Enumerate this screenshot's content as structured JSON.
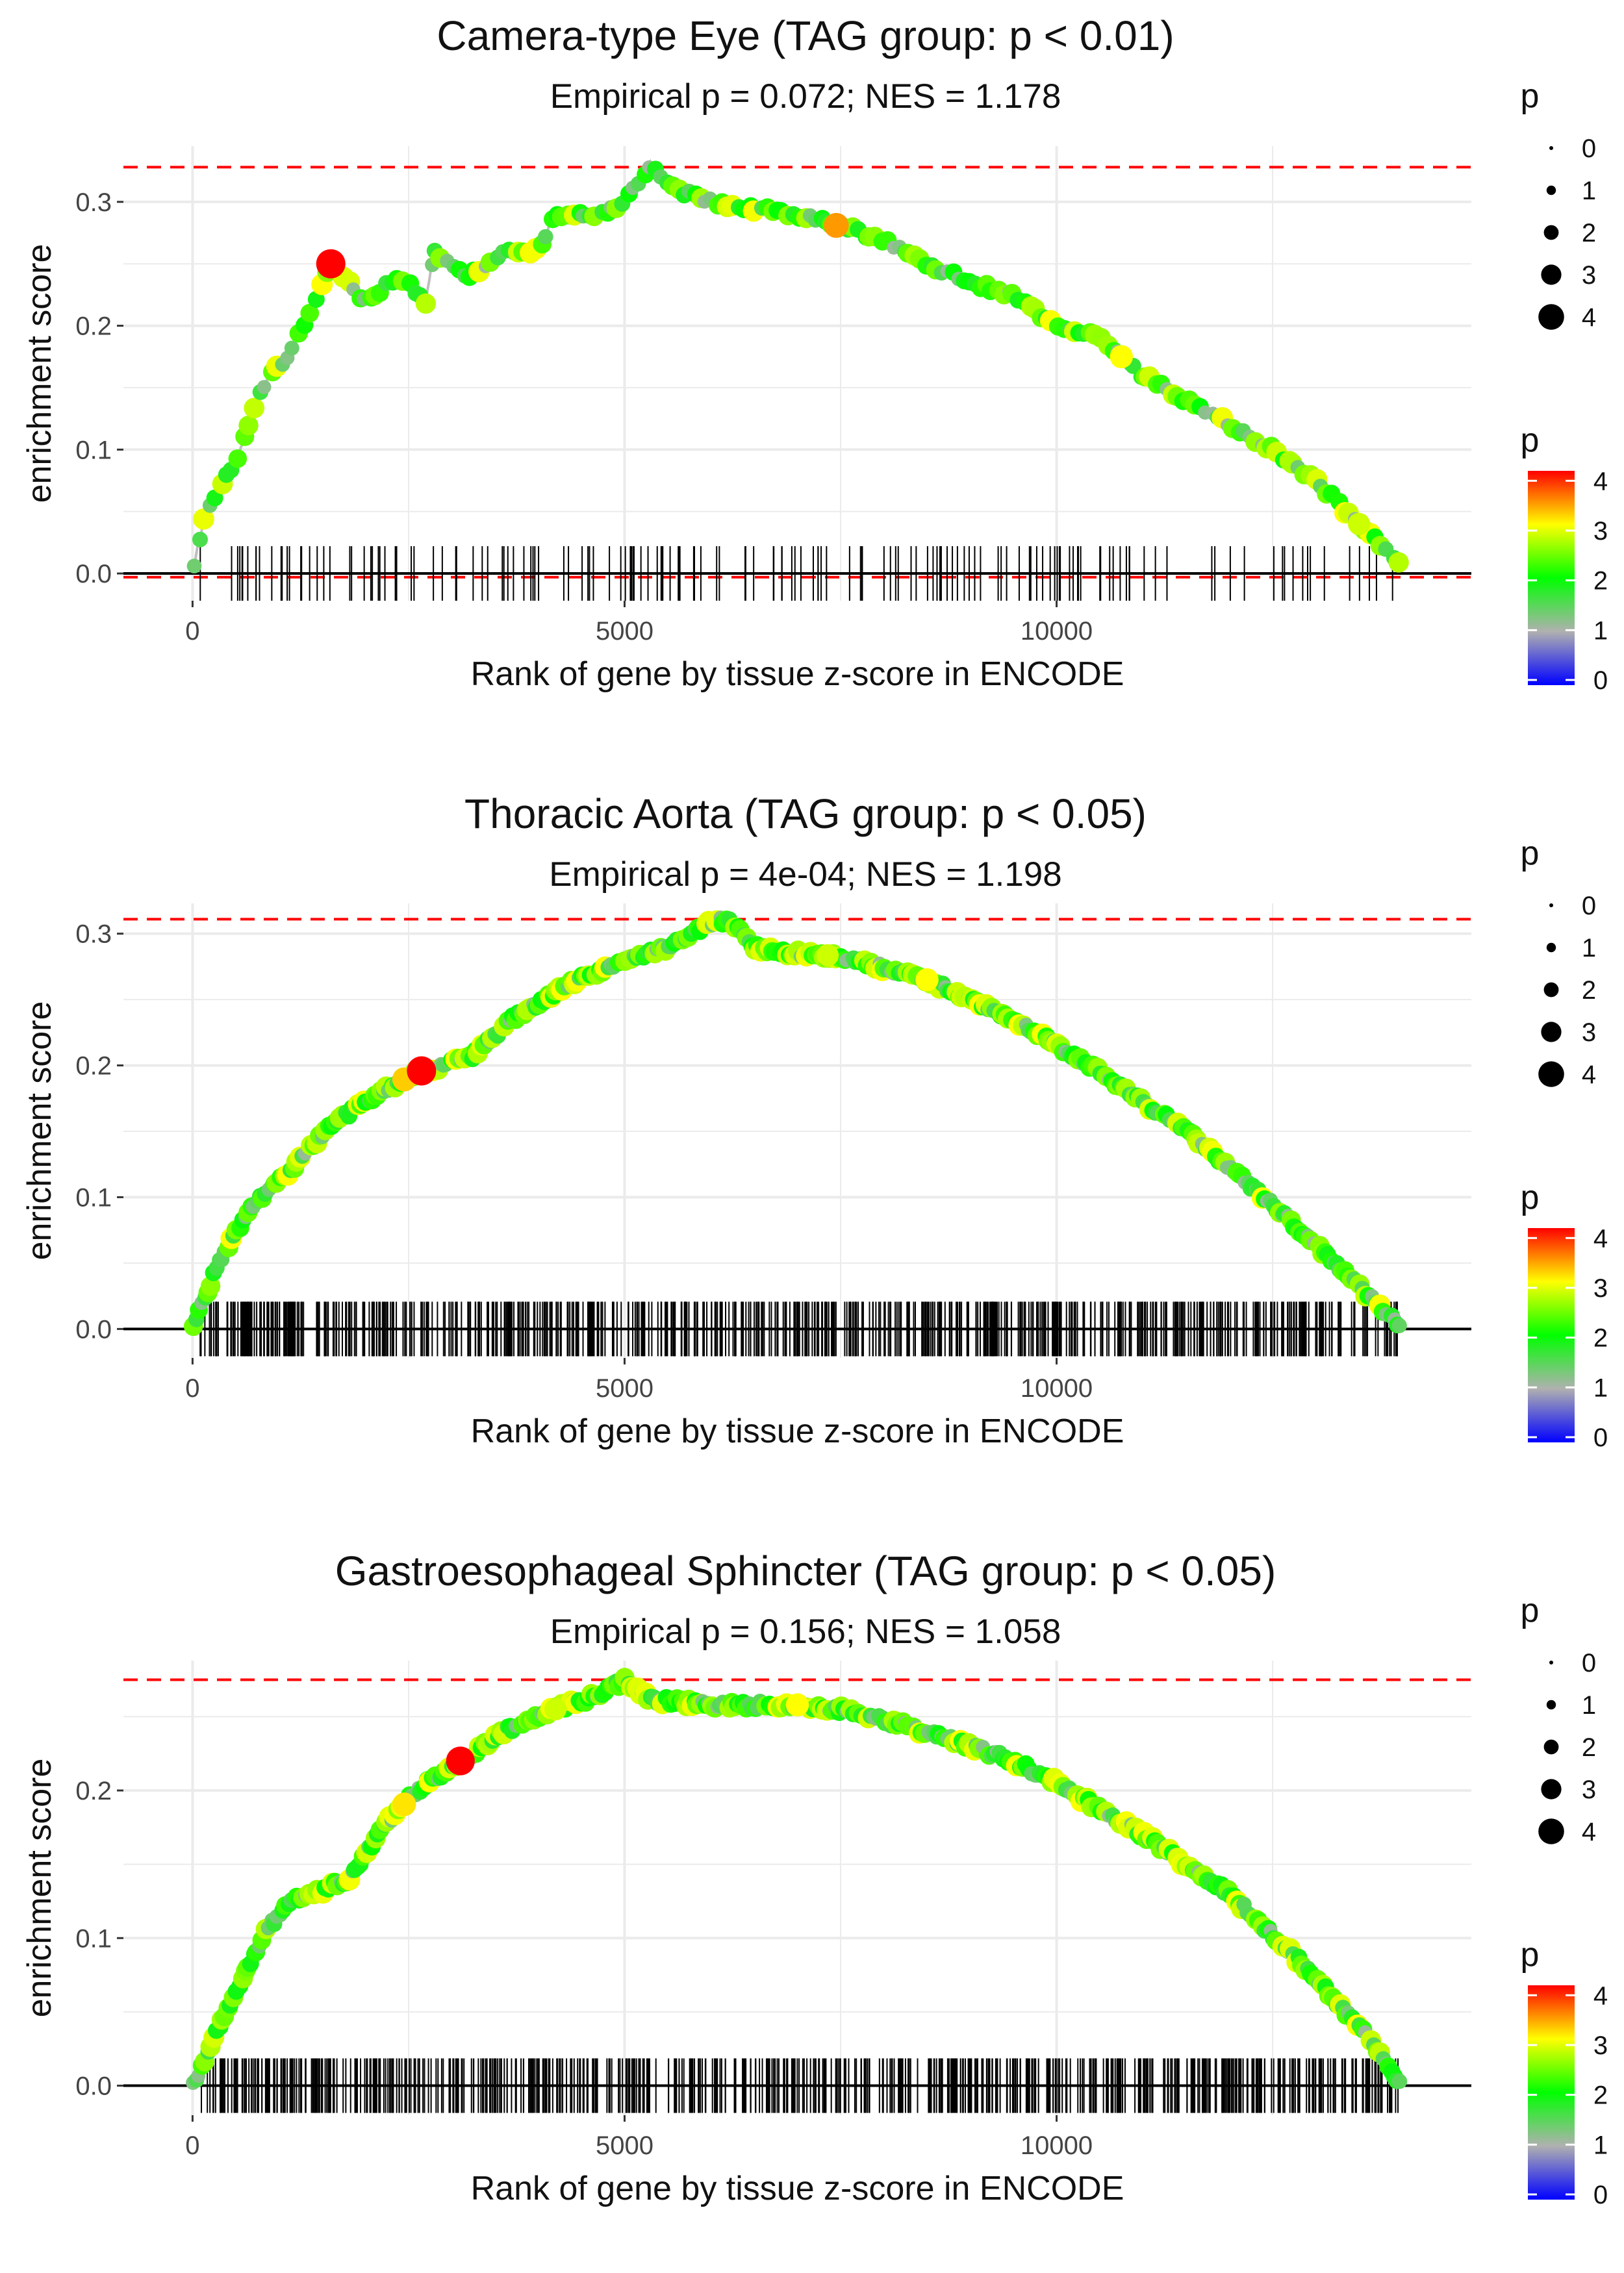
{
  "colors": {
    "threshold_line": "#ff0000",
    "curve_line": "#bebebe",
    "rug": "#000000",
    "grid": "#ebebeb",
    "gradient": [
      "#0000ff",
      "#b0b0b0",
      "#00ff00",
      "#ffff00",
      "#ff0000"
    ]
  },
  "legend": {
    "size_title": "p",
    "size_labels": [
      "0",
      "1",
      "2",
      "3",
      "4"
    ],
    "color_title": "p",
    "color_labels": [
      "4",
      "3",
      "2",
      "1",
      "0"
    ]
  },
  "chart_data": [
    {
      "type": "scatter",
      "title": "Camera-type Eye (TAG group: p < 0.01)",
      "subtitle": "Empirical p = 0.072; NES = 1.178",
      "xlabel": "Rank of gene by tissue z-score in ENCODE",
      "ylabel": "enrichment score",
      "xlim": [
        -800,
        14800
      ],
      "ylim": [
        -0.022,
        0.345
      ],
      "xticks": [
        0,
        5000,
        10000
      ],
      "xtick_labels": [
        "0",
        "5000",
        "10000"
      ],
      "yticks": [
        0.0,
        0.1,
        0.2,
        0.3
      ],
      "ytick_labels": [
        "0.0",
        "0.1",
        "0.2",
        "0.3"
      ],
      "max_es": 0.328,
      "min_es": -0.003,
      "n_genes": 14000,
      "rug_count": 160,
      "seed": 11,
      "curve": [
        [
          0,
          0.0
        ],
        [
          150,
          0.05
        ],
        [
          500,
          0.09
        ],
        [
          800,
          0.15
        ],
        [
          1150,
          0.18
        ],
        [
          1350,
          0.21
        ],
        [
          1600,
          0.25
        ],
        [
          2000,
          0.22
        ],
        [
          2400,
          0.24
        ],
        [
          2700,
          0.22
        ],
        [
          2800,
          0.26
        ],
        [
          3200,
          0.24
        ],
        [
          3600,
          0.26
        ],
        [
          4000,
          0.26
        ],
        [
          4200,
          0.29
        ],
        [
          4700,
          0.29
        ],
        [
          5000,
          0.3
        ],
        [
          5300,
          0.328
        ],
        [
          5600,
          0.31
        ],
        [
          6000,
          0.3
        ],
        [
          7000,
          0.29
        ],
        [
          8000,
          0.27
        ],
        [
          8500,
          0.25
        ],
        [
          9000,
          0.235
        ],
        [
          9500,
          0.225
        ],
        [
          10000,
          0.2
        ],
        [
          10500,
          0.19
        ],
        [
          11000,
          0.16
        ],
        [
          11500,
          0.14
        ],
        [
          12500,
          0.1
        ],
        [
          13000,
          0.075
        ],
        [
          13500,
          0.04
        ],
        [
          14000,
          0.005
        ]
      ],
      "highlights": [
        {
          "x": 1600,
          "p": 4.3
        },
        {
          "x": 7450,
          "p": 3.4
        },
        {
          "x": 10750,
          "p": 3.0
        },
        {
          "x": 13500,
          "p": 2.8
        }
      ]
    },
    {
      "type": "scatter",
      "title": "Thoracic Aorta (TAG group: p < 0.05)",
      "subtitle": "Empirical p = 4e-04; NES = 1.198",
      "xlabel": "Rank of gene by tissue z-score in ENCODE",
      "ylabel": "enrichment score",
      "xlim": [
        -800,
        14800
      ],
      "ylim": [
        -0.022,
        0.323
      ],
      "xticks": [
        0,
        5000,
        10000
      ],
      "xtick_labels": [
        "0",
        "5000",
        "10000"
      ],
      "yticks": [
        0.0,
        0.1,
        0.2,
        0.3
      ],
      "ytick_labels": [
        "0.0",
        "0.1",
        "0.2",
        "0.3"
      ],
      "max_es": 0.311,
      "min_es": null,
      "n_genes": 14000,
      "rug_count": 700,
      "seed": 23,
      "curve": [
        [
          0,
          0.0
        ],
        [
          300,
          0.05
        ],
        [
          700,
          0.095
        ],
        [
          1200,
          0.125
        ],
        [
          1600,
          0.155
        ],
        [
          2200,
          0.18
        ],
        [
          2600,
          0.195
        ],
        [
          3200,
          0.205
        ],
        [
          3700,
          0.235
        ],
        [
          4300,
          0.26
        ],
        [
          5000,
          0.28
        ],
        [
          5500,
          0.29
        ],
        [
          6000,
          0.308
        ],
        [
          6200,
          0.311
        ],
        [
          6500,
          0.29
        ],
        [
          7000,
          0.285
        ],
        [
          7500,
          0.283
        ],
        [
          8500,
          0.265
        ],
        [
          9500,
          0.235
        ],
        [
          10500,
          0.195
        ],
        [
          11500,
          0.15
        ],
        [
          12500,
          0.095
        ],
        [
          13300,
          0.045
        ],
        [
          14000,
          0.0
        ]
      ],
      "highlights": [
        {
          "x": 2450,
          "p": 3.2
        },
        {
          "x": 2650,
          "p": 4.3
        },
        {
          "x": 8500,
          "p": 3.0
        },
        {
          "x": 7350,
          "p": 2.8
        }
      ]
    },
    {
      "type": "scatter",
      "title": "Gastroesophageal Sphincter (TAG group: p < 0.05)",
      "subtitle": "Empirical p = 0.156; NES = 1.058",
      "xlabel": "Rank of gene by tissue z-score in ENCODE",
      "ylabel": "enrichment score",
      "xlim": [
        -800,
        14800
      ],
      "ylim": [
        -0.02,
        0.288
      ],
      "xticks": [
        0,
        5000,
        10000
      ],
      "xtick_labels": [
        "0",
        "5000",
        "10000"
      ],
      "yticks": [
        0.0,
        0.1,
        0.2
      ],
      "ytick_labels": [
        "0.0",
        "0.1",
        "0.2"
      ],
      "max_es": 0.275,
      "min_es": null,
      "n_genes": 14000,
      "rug_count": 700,
      "seed": 37,
      "curve": [
        [
          0,
          0.0
        ],
        [
          300,
          0.04
        ],
        [
          800,
          0.1
        ],
        [
          1100,
          0.125
        ],
        [
          1400,
          0.13
        ],
        [
          1800,
          0.14
        ],
        [
          2200,
          0.175
        ],
        [
          2600,
          0.2
        ],
        [
          3100,
          0.22
        ],
        [
          3600,
          0.24
        ],
        [
          4200,
          0.255
        ],
        [
          4700,
          0.265
        ],
        [
          5000,
          0.275
        ],
        [
          5300,
          0.262
        ],
        [
          6000,
          0.258
        ],
        [
          7000,
          0.258
        ],
        [
          7500,
          0.255
        ],
        [
          8500,
          0.24
        ],
        [
          9500,
          0.22
        ],
        [
          10000,
          0.205
        ],
        [
          11000,
          0.17
        ],
        [
          12000,
          0.13
        ],
        [
          12800,
          0.085
        ],
        [
          13500,
          0.04
        ],
        [
          14000,
          0.0
        ]
      ],
      "highlights": [
        {
          "x": 3100,
          "p": 4.2
        },
        {
          "x": 2450,
          "p": 3.1
        },
        {
          "x": 7000,
          "p": 3.0
        },
        {
          "x": 4200,
          "p": 2.8
        }
      ]
    }
  ]
}
